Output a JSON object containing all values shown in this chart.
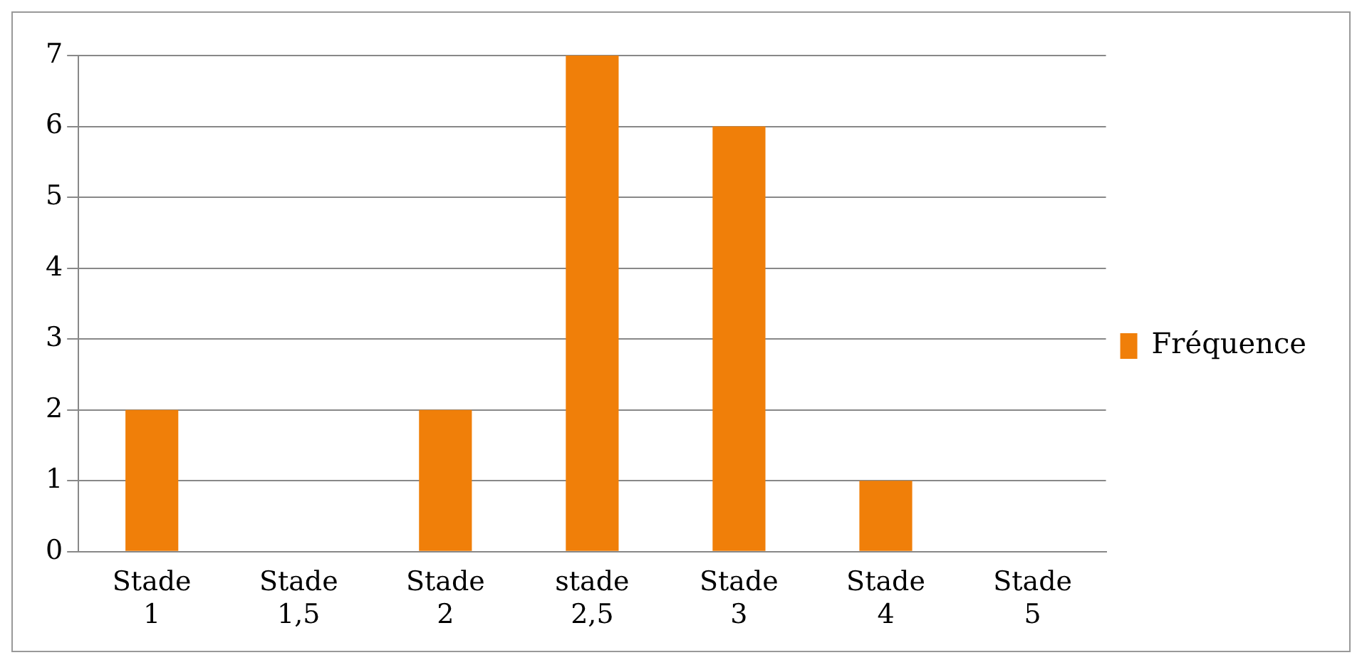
{
  "chart_data": {
    "type": "bar",
    "categories": [
      "Stade 1",
      "Stade 1,5",
      "Stade 2",
      "stade 2,5",
      "Stade 3",
      "Stade 4",
      "Stade 5"
    ],
    "series": [
      {
        "name": "Fréquence",
        "color": "#f07f09",
        "values": [
          2,
          0,
          2,
          7,
          6,
          1,
          0
        ]
      }
    ],
    "ylim": [
      0,
      7
    ],
    "yticks": [
      0,
      1,
      2,
      3,
      4,
      5,
      6,
      7
    ],
    "grid": "y",
    "legend": "right"
  }
}
